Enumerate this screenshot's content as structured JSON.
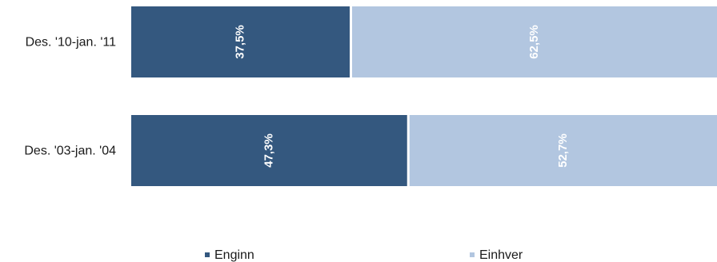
{
  "chart_data": {
    "type": "bar",
    "orientation": "horizontal",
    "stacked": true,
    "percent_stacked": true,
    "categories": [
      "Des. '10-jan. '11",
      "Des. '03-jan. '04"
    ],
    "series": [
      {
        "name": "Enginn",
        "values": [
          37.5,
          47.3
        ],
        "labels": [
          "37,5%",
          "47,3%"
        ],
        "color": "#34587f"
      },
      {
        "name": "Einhver",
        "values": [
          62.5,
          52.7
        ],
        "labels": [
          "62,5%",
          "52,7%"
        ],
        "color": "#b2c6e0"
      }
    ],
    "xlim": [
      0,
      100
    ],
    "grid": false,
    "legend_position": "bottom"
  }
}
